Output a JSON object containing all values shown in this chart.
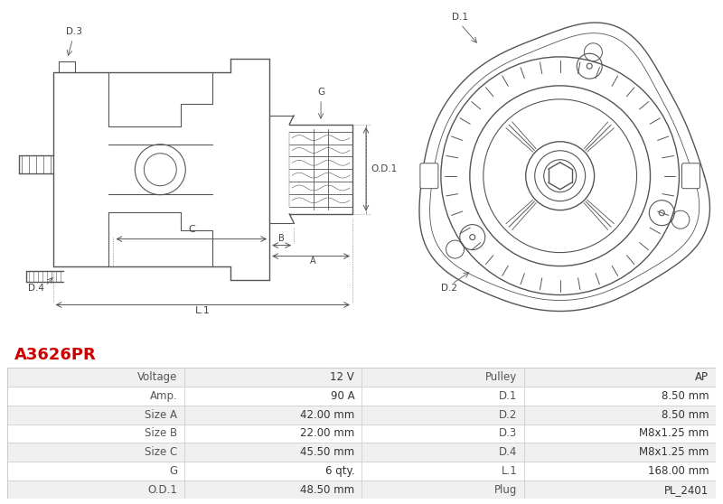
{
  "title": "A3626PR",
  "title_color": "#cc0000",
  "bg_color": "#ffffff",
  "line_color": "#555555",
  "table_rows": [
    [
      "Voltage",
      "12 V",
      "Pulley",
      "AP"
    ],
    [
      "Amp.",
      "90 A",
      "D.1",
      "8.50 mm"
    ],
    [
      "Size A",
      "42.00 mm",
      "D.2",
      "8.50 mm"
    ],
    [
      "Size B",
      "22.00 mm",
      "D.3",
      "M8x1.25 mm"
    ],
    [
      "Size C",
      "45.50 mm",
      "D.4",
      "M8x1.25 mm"
    ],
    [
      "G",
      "6 qty.",
      "L.1",
      "168.00 mm"
    ],
    [
      "O.D.1",
      "48.50 mm",
      "Plug",
      "PL_2401"
    ]
  ],
  "table_alt_bg": "#f0f0f0",
  "table_white_bg": "#ffffff",
  "table_border_color": "#cccccc",
  "label_color": "#555555",
  "value_color": "#333333"
}
